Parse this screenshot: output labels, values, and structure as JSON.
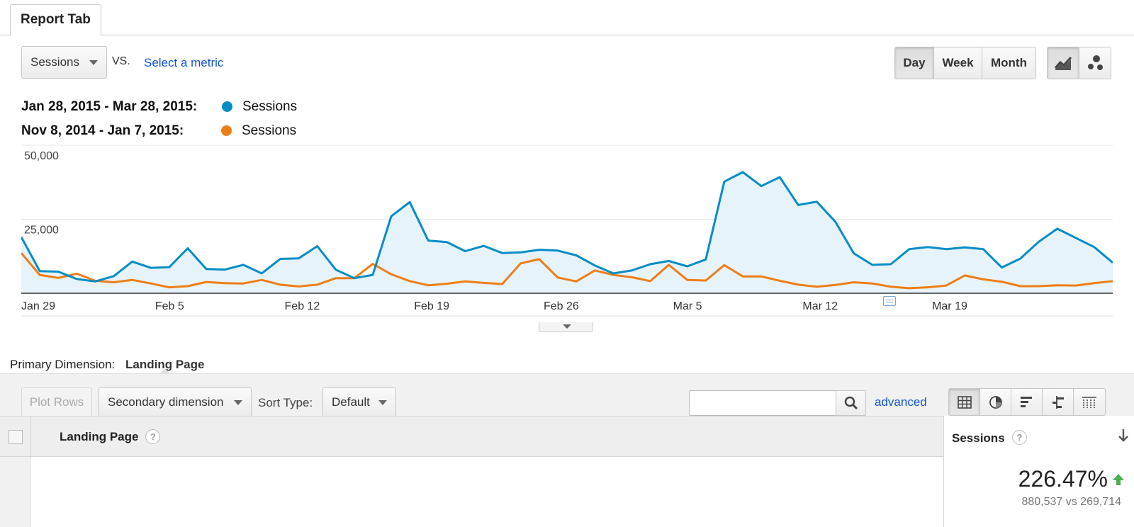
{
  "tab": {
    "label": "Report Tab"
  },
  "controls": {
    "metric": "Sessions",
    "vs": "VS.",
    "select_metric": "Select a metric",
    "granularity": [
      "Day",
      "Week",
      "Month"
    ],
    "granularity_selected": "Day",
    "chart_modes": [
      "line-chart-icon",
      "motion-chart-icon"
    ]
  },
  "legend": [
    {
      "range": "Jan 28, 2015 - Mar 28, 2015:",
      "label": "Sessions",
      "color": "#058dc7"
    },
    {
      "range": "Nov 8, 2014 - Jan 7, 2015:",
      "label": "Sessions",
      "color": "#ed7e17"
    }
  ],
  "chart_data": {
    "type": "line",
    "y_ticks": [
      "50,000",
      "25,000"
    ],
    "ylim": [
      0,
      50000
    ],
    "x_tick_labels": [
      "Jan 29",
      "Feb 5",
      "Feb 12",
      "Feb 19",
      "Feb 26",
      "Mar 5",
      "Mar 12",
      "Mar 19"
    ],
    "x_tick_indices": [
      1,
      8,
      15,
      22,
      29,
      36,
      43,
      50
    ],
    "grid": true,
    "series": [
      {
        "name": "Sessions",
        "color": "#058dc7",
        "fill": true,
        "values": [
          19000,
          7500,
          7300,
          4800,
          4000,
          5800,
          10700,
          8600,
          8800,
          15200,
          8200,
          8000,
          9600,
          6700,
          11600,
          11800,
          15900,
          8000,
          5100,
          6200,
          26000,
          30800,
          17800,
          17300,
          14200,
          16000,
          13600,
          13800,
          14700,
          14400,
          12800,
          9400,
          6700,
          7700,
          9800,
          10900,
          9100,
          11400,
          37700,
          40900,
          36200,
          39200,
          29800,
          30900,
          24200,
          13500,
          9600,
          9800,
          14900,
          15600,
          14900,
          15500,
          14900,
          8700,
          11700,
          17400,
          21800,
          18700,
          15600,
          10300
        ]
      },
      {
        "name": "Sessions",
        "color": "#ed7e17",
        "fill": false,
        "values": [
          13600,
          6200,
          5200,
          6600,
          4200,
          3700,
          4500,
          3300,
          2000,
          2400,
          3800,
          3400,
          3300,
          4500,
          2900,
          2300,
          2900,
          5100,
          5100,
          9900,
          6400,
          4100,
          2700,
          3200,
          4000,
          3500,
          3100,
          10100,
          11500,
          5300,
          4000,
          7700,
          6200,
          5400,
          4100,
          9600,
          4500,
          4300,
          9500,
          5700,
          5700,
          4200,
          2900,
          2200,
          2800,
          3700,
          3300,
          2200,
          1700,
          2000,
          2600,
          6000,
          4700,
          3900,
          2400,
          2400,
          2700,
          2600,
          3400,
          4100
        ]
      }
    ]
  },
  "dimension": {
    "label": "Primary Dimension:",
    "value": "Landing Page"
  },
  "toolbar": {
    "plot_rows": "Plot Rows",
    "secondary_dimension": "Secondary dimension",
    "sort_type_label": "Sort Type:",
    "sort_type_value": "Default",
    "search_placeholder": "",
    "advanced": "advanced",
    "view_icons": [
      "table-view-icon",
      "pie-view-icon",
      "bar-view-icon",
      "comparison-view-icon",
      "pivot-view-icon"
    ]
  },
  "table": {
    "col_landing": "Landing Page",
    "col_sessions": "Sessions",
    "help": "?",
    "total_change": "226.47%",
    "total_compare": "880,537 vs 269,714",
    "change_color": "#4caf50"
  }
}
